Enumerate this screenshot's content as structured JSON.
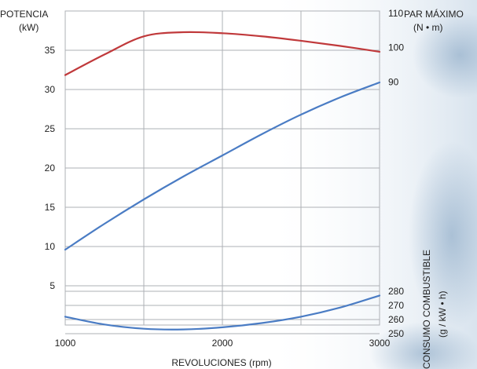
{
  "chart_data": {
    "type": "line",
    "left_title": [
      "POTENCIA",
      "(kW)"
    ],
    "right_title": [
      "PAR MÁXIMO",
      "(N • m)"
    ],
    "consumption_title": [
      "CONSUMO COMBUSTIBLE",
      "(g / kW • h)"
    ],
    "xlabel": "REVOLUCIONES (rpm)",
    "xlim": [
      1000,
      3000
    ],
    "x_ticks": [
      "1000",
      "2000",
      "3000"
    ],
    "power_axis": {
      "lim": [
        0,
        40
      ],
      "ticks": [
        "5",
        "10",
        "15",
        "20",
        "25",
        "30",
        "35"
      ]
    },
    "torque_axis": {
      "lim": [
        80,
        110
      ],
      "ticks": [
        "90",
        "100",
        "110"
      ]
    },
    "consumption_axis": {
      "lim": [
        245,
        285
      ],
      "ticks": [
        "250",
        "260",
        "270",
        "280"
      ]
    },
    "colors": {
      "torque": "#c0393b",
      "power": "#4a7cc4",
      "consumption": "#4a7cc4",
      "grid": "#aeb1b6"
    },
    "series": [
      {
        "axis": "power",
        "x": [
          1000,
          1250,
          1500,
          1750,
          2000,
          2250,
          2500,
          2750,
          3000
        ],
        "values": [
          9.6,
          12.9,
          16.0,
          18.9,
          21.6,
          24.3,
          26.8,
          29.0,
          30.9
        ]
      },
      {
        "axis": "torque",
        "x": [
          1000,
          1250,
          1500,
          1750,
          2000,
          2250,
          2500,
          2750,
          3000
        ],
        "values": [
          92.0,
          98.0,
          103.3,
          104.5,
          104.2,
          103.3,
          102.0,
          100.5,
          98.8
        ]
      },
      {
        "axis": "consumption",
        "x": [
          1000,
          1250,
          1500,
          1750,
          2000,
          2250,
          2500,
          2750,
          3000
        ],
        "values": [
          262.0,
          256.5,
          253.5,
          253.0,
          254.5,
          257.5,
          262.0,
          268.5,
          277.0
        ]
      }
    ],
    "grid": true
  }
}
